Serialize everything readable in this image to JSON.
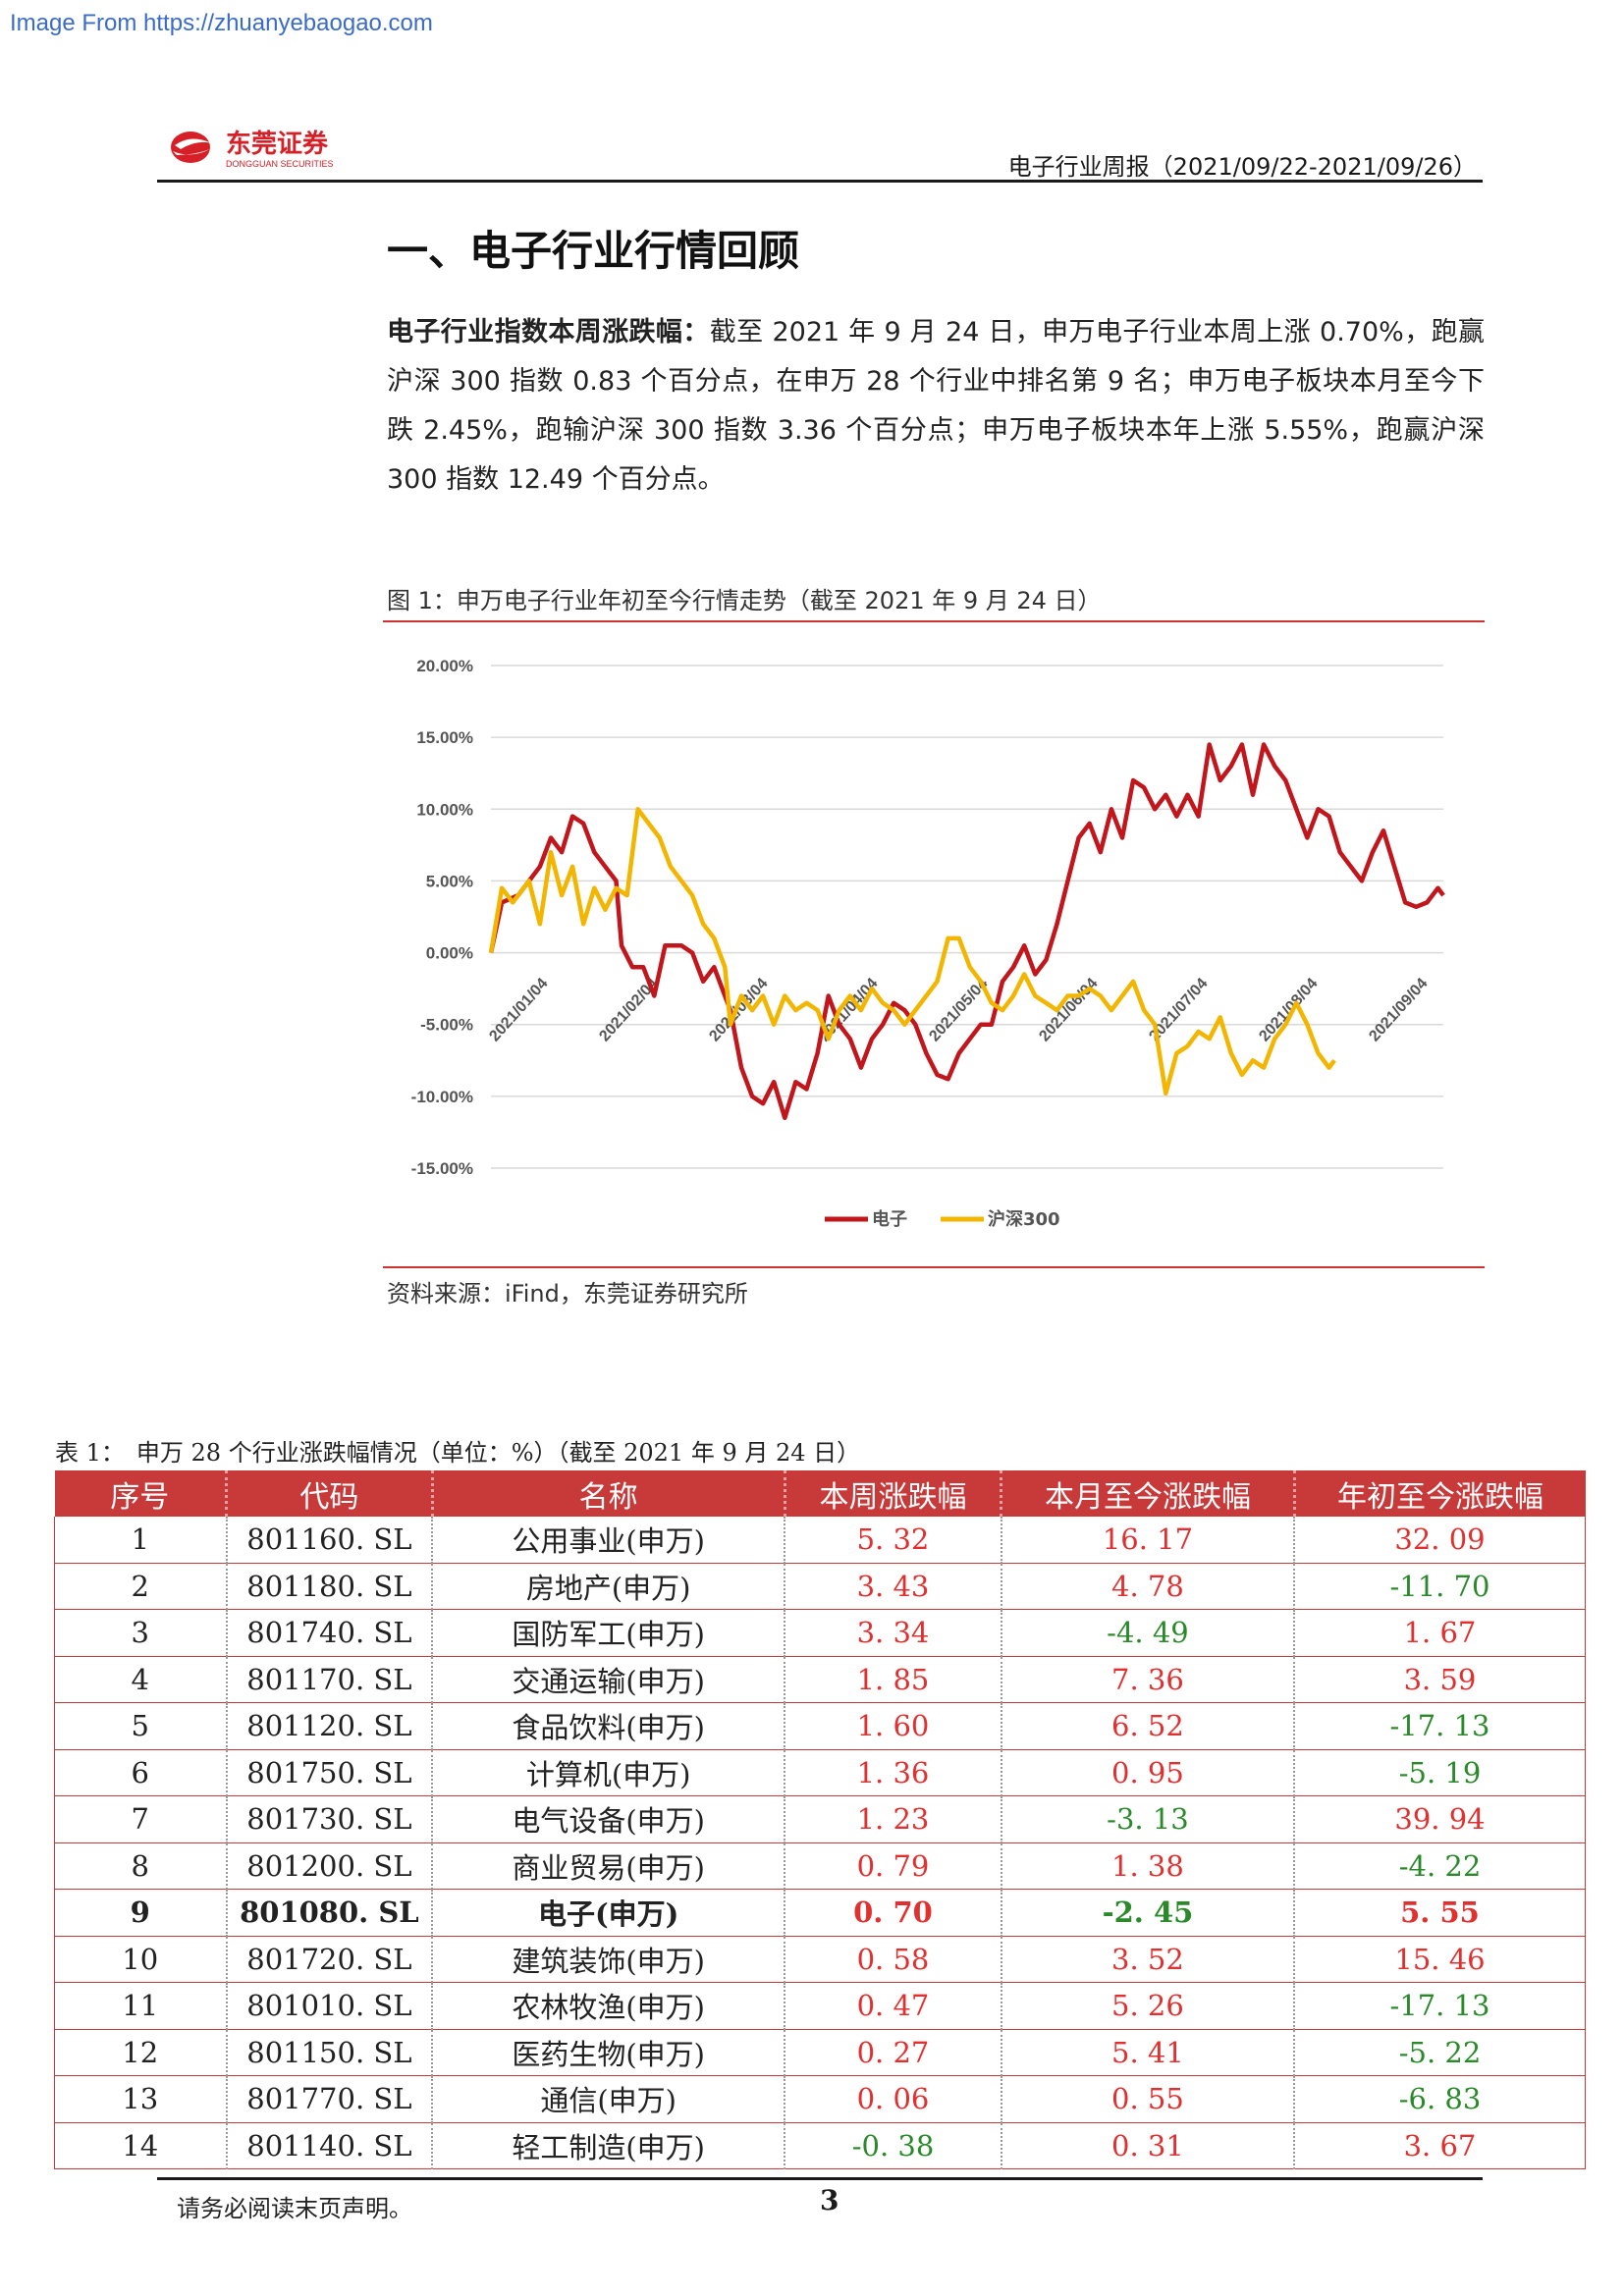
{
  "watermark": "Image From https://zhuanyebaogao.com",
  "logo": {
    "cn": "东莞证券",
    "en": "DONGGUAN SECURITIES"
  },
  "header": {
    "report_title": "电子行业周报（2021/09/22-2021/09/26）"
  },
  "section": {
    "title": "一、电子行业行情回顾"
  },
  "paragraph": {
    "lead": "电子行业指数本周涨跌幅：",
    "body": "截至 2021 年 9 月 24 日，申万电子行业本周上涨 0.70%，跑赢沪深 300 指数 0.83 个百分点，在申万 28 个行业中排名第 9 名；申万电子板块本月至今下跌 2.45%，跑输沪深 300 指数 3.36 个百分点；申万电子板块本年上涨 5.55%，跑赢沪深 300 指数 12.49 个百分点。"
  },
  "figure": {
    "caption": "图 1：申万电子行业年初至今行情走势（截至 2021 年 9 月 24 日）",
    "source": "资料来源：iFind，东莞证券研究所"
  },
  "chart_data": {
    "type": "line",
    "title": "",
    "ylim": [
      -15,
      20
    ],
    "yticks": [
      "20.00%",
      "15.00%",
      "10.00%",
      "5.00%",
      "0.00%",
      "-5.00%",
      "-10.00%",
      "-15.00%"
    ],
    "xticks": [
      "2021/01/04",
      "2021/02/04",
      "2021/03/04",
      "2021/04/04",
      "2021/05/04",
      "2021/06/04",
      "2021/07/04",
      "2021/08/04",
      "2021/09/04"
    ],
    "grid": true,
    "legend_position": "bottom",
    "colors": {
      "电子": "#c0161c",
      "沪深300": "#f2b500"
    },
    "series": [
      {
        "name": "电子",
        "color": "#c0161c",
        "points": [
          [
            0,
            0
          ],
          [
            2,
            3.5
          ],
          [
            5,
            4
          ],
          [
            9,
            6
          ],
          [
            11,
            8
          ],
          [
            13,
            7
          ],
          [
            15,
            9.5
          ],
          [
            17,
            9
          ],
          [
            19,
            7
          ],
          [
            21,
            6
          ],
          [
            23,
            5
          ],
          [
            24,
            0.5
          ],
          [
            26,
            -1
          ],
          [
            28,
            -1
          ],
          [
            30,
            -3
          ],
          [
            32,
            0.5
          ],
          [
            35,
            0.5
          ],
          [
            37,
            0
          ],
          [
            39,
            -2
          ],
          [
            41,
            -1
          ],
          [
            43,
            -3
          ],
          [
            44,
            -4
          ],
          [
            46,
            -8
          ],
          [
            48,
            -10
          ],
          [
            50,
            -10.5
          ],
          [
            52,
            -9
          ],
          [
            54,
            -11.5
          ],
          [
            56,
            -9
          ],
          [
            58,
            -9.5
          ],
          [
            60,
            -7
          ],
          [
            62,
            -3
          ],
          [
            64,
            -5
          ],
          [
            66,
            -6
          ],
          [
            68,
            -8
          ],
          [
            70,
            -6
          ],
          [
            72,
            -5
          ],
          [
            74,
            -3.5
          ],
          [
            76,
            -4
          ],
          [
            78,
            -5
          ],
          [
            80,
            -7
          ],
          [
            82,
            -8.5
          ],
          [
            84,
            -8.8
          ],
          [
            86,
            -7
          ],
          [
            88,
            -6
          ],
          [
            90,
            -5
          ],
          [
            92,
            -5
          ],
          [
            94,
            -2
          ],
          [
            96,
            -1
          ],
          [
            98,
            0.5
          ],
          [
            100,
            -1.5
          ],
          [
            102,
            -0.5
          ],
          [
            104,
            2
          ],
          [
            106,
            5
          ],
          [
            108,
            8
          ],
          [
            110,
            9
          ],
          [
            112,
            7
          ],
          [
            114,
            10
          ],
          [
            116,
            8
          ],
          [
            118,
            12
          ],
          [
            120,
            11.5
          ],
          [
            122,
            10
          ],
          [
            124,
            11
          ],
          [
            126,
            9.5
          ],
          [
            128,
            11
          ],
          [
            130,
            9.5
          ],
          [
            132,
            14.5
          ],
          [
            134,
            12
          ],
          [
            136,
            13
          ],
          [
            138,
            14.5
          ],
          [
            140,
            11
          ],
          [
            142,
            14.5
          ],
          [
            144,
            13
          ],
          [
            146,
            12
          ],
          [
            148,
            10
          ],
          [
            150,
            8
          ],
          [
            152,
            10
          ],
          [
            154,
            9.5
          ],
          [
            156,
            7
          ],
          [
            158,
            6
          ],
          [
            160,
            5
          ],
          [
            162,
            7
          ],
          [
            164,
            8.5
          ],
          [
            166,
            6
          ],
          [
            168,
            3.5
          ],
          [
            170,
            3.2
          ],
          [
            172,
            3.5
          ],
          [
            174,
            4.5
          ],
          [
            175,
            4
          ]
        ]
      },
      {
        "name": "沪深300",
        "color": "#f2b500",
        "points": [
          [
            0,
            0
          ],
          [
            2,
            4.5
          ],
          [
            4,
            3.5
          ],
          [
            7,
            5
          ],
          [
            9,
            2
          ],
          [
            11,
            7
          ],
          [
            13,
            4
          ],
          [
            15,
            6
          ],
          [
            17,
            2
          ],
          [
            19,
            4.5
          ],
          [
            21,
            3
          ],
          [
            23,
            4.5
          ],
          [
            25,
            4
          ],
          [
            27,
            10
          ],
          [
            29,
            9
          ],
          [
            31,
            8
          ],
          [
            33,
            6
          ],
          [
            35,
            5
          ],
          [
            37,
            4
          ],
          [
            39,
            2
          ],
          [
            41,
            1
          ],
          [
            43,
            -1
          ],
          [
            44,
            -5
          ],
          [
            46,
            -3
          ],
          [
            48,
            -4
          ],
          [
            50,
            -3
          ],
          [
            52,
            -5
          ],
          [
            54,
            -3
          ],
          [
            56,
            -4
          ],
          [
            58,
            -3.5
          ],
          [
            60,
            -4
          ],
          [
            62,
            -6
          ],
          [
            64,
            -4
          ],
          [
            66,
            -3
          ],
          [
            68,
            -4
          ],
          [
            70,
            -2.5
          ],
          [
            72,
            -3.5
          ],
          [
            74,
            -4
          ],
          [
            76,
            -5
          ],
          [
            78,
            -4
          ],
          [
            80,
            -3
          ],
          [
            82,
            -2
          ],
          [
            84,
            1
          ],
          [
            86,
            1
          ],
          [
            88,
            -1
          ],
          [
            90,
            -2
          ],
          [
            92,
            -3.5
          ],
          [
            94,
            -4
          ],
          [
            96,
            -3
          ],
          [
            98,
            -1.5
          ],
          [
            100,
            -3
          ],
          [
            102,
            -3.5
          ],
          [
            104,
            -4
          ],
          [
            106,
            -3
          ],
          [
            108,
            -3
          ],
          [
            110,
            -2.5
          ],
          [
            112,
            -3
          ],
          [
            114,
            -4
          ],
          [
            116,
            -3
          ],
          [
            118,
            -2
          ],
          [
            120,
            -4
          ],
          [
            122,
            -5
          ],
          [
            124,
            -9.8
          ],
          [
            126,
            -7
          ],
          [
            128,
            -6.5
          ],
          [
            130,
            -5.5
          ],
          [
            132,
            -6
          ],
          [
            134,
            -4.5
          ],
          [
            136,
            -7
          ],
          [
            138,
            -8.5
          ],
          [
            140,
            -7.5
          ],
          [
            142,
            -8
          ],
          [
            144,
            -6
          ],
          [
            146,
            -5
          ],
          [
            148,
            -3.5
          ],
          [
            150,
            -5
          ],
          [
            152,
            -7
          ],
          [
            154,
            -8
          ],
          [
            155,
            -7.5
          ]
        ]
      }
    ]
  },
  "table": {
    "caption": "表 1：　申万 28 个行业涨跌幅情况（单位：%）（截至 2021 年 9 月 24 日）",
    "headers": [
      "序号",
      "代码",
      "名称",
      "本周涨跌幅",
      "本月至今涨跌幅",
      "年初至今涨跌幅"
    ],
    "rows": [
      [
        "1",
        "801160. SL",
        "公用事业(申万)",
        "5. 32",
        "16. 17",
        "32. 09"
      ],
      [
        "2",
        "801180. SL",
        "房地产(申万)",
        "3. 43",
        "4. 78",
        "-11. 70"
      ],
      [
        "3",
        "801740. SL",
        "国防军工(申万)",
        "3. 34",
        "-4. 49",
        "1. 67"
      ],
      [
        "4",
        "801170. SL",
        "交通运输(申万)",
        "1. 85",
        "7. 36",
        "3. 59"
      ],
      [
        "5",
        "801120. SL",
        "食品饮料(申万)",
        "1. 60",
        "6. 52",
        "-17. 13"
      ],
      [
        "6",
        "801750. SL",
        "计算机(申万)",
        "1. 36",
        "0. 95",
        "-5. 19"
      ],
      [
        "7",
        "801730. SL",
        "电气设备(申万)",
        "1. 23",
        "-3. 13",
        "39. 94"
      ],
      [
        "8",
        "801200. SL",
        "商业贸易(申万)",
        "0. 79",
        "1. 38",
        "-4. 22"
      ],
      [
        "9",
        "801080. SL",
        "电子(申万)",
        "0. 70",
        "-2. 45",
        "5. 55"
      ],
      [
        "10",
        "801720. SL",
        "建筑装饰(申万)",
        "0. 58",
        "3. 52",
        "15. 46"
      ],
      [
        "11",
        "801010. SL",
        "农林牧渔(申万)",
        "0. 47",
        "5. 26",
        "-17. 13"
      ],
      [
        "12",
        "801150. SL",
        "医药生物(申万)",
        "0. 27",
        "5. 41",
        "-5. 22"
      ],
      [
        "13",
        "801770. SL",
        "通信(申万)",
        "0. 06",
        "0. 55",
        "-6. 83"
      ],
      [
        "14",
        "801140. SL",
        "轻工制造(申万)",
        "-0. 38",
        "0. 31",
        "3. 67"
      ]
    ],
    "highlight_row_index": 8
  },
  "footer": {
    "note": "请务必阅读末页声明。",
    "page": "3"
  }
}
